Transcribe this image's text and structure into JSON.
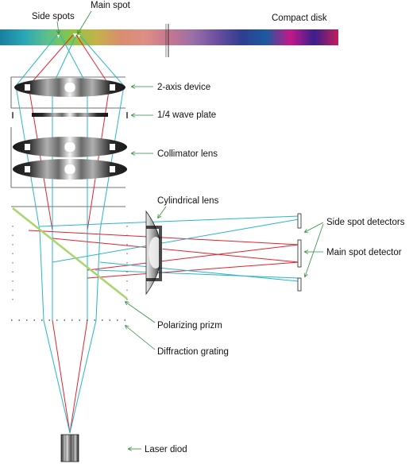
{
  "labels": {
    "side_spots": "Side spots",
    "main_spot": "Main spot",
    "compact_disk": "Compact disk",
    "two_axis_device": "2-axis device",
    "quarter_wave_plate": "1/4 wave plate",
    "collimator_lens": "Collimator lens",
    "cylindrical_lens": "Cylindrical lens",
    "side_spot_detectors": "Side spot detectors",
    "main_spot_detector": "Main spot detector",
    "polarizing_prism": "Polarizing prizm",
    "diffraction_grating": "Diffraction grating",
    "laser_diode": "Laser diod"
  },
  "colors": {
    "main_beam": "#e8202a",
    "side_beam": "#28b4cc",
    "prism": "#a8d66a",
    "leader_arrow": "#2e8b3a",
    "outline": "#333333"
  },
  "disk_spectrum": [
    "#1a7fa0",
    "#2aa6b5",
    "#5fc089",
    "#8cc63f",
    "#c4b24a",
    "#d98d6e",
    "#dd8f85",
    "#c7768f",
    "#9a6fa8",
    "#6b4ea0",
    "#2f3e8f",
    "#1b5aa0",
    "#c3198a",
    "#3a1f8c",
    "#c51d5a"
  ]
}
